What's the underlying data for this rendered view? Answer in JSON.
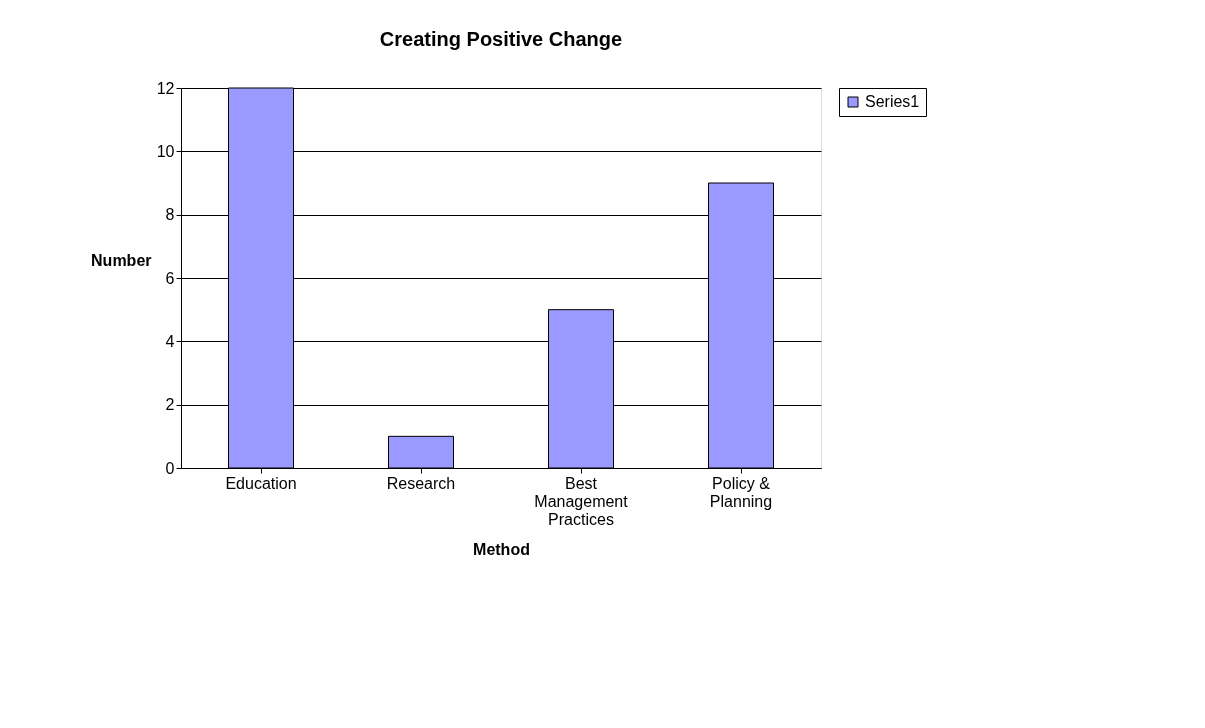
{
  "chart_data": {
    "type": "bar",
    "title": "Creating Positive Change",
    "xlabel": "Method",
    "ylabel": "Number",
    "categories": [
      "Education",
      "Research",
      "Best Management Practices",
      "Policy & Planning"
    ],
    "series": [
      {
        "name": "Series1",
        "color": "#9999ff",
        "values": [
          12,
          1,
          5,
          9
        ]
      }
    ],
    "ylim": [
      0,
      12
    ],
    "yticks": [
      0,
      2,
      4,
      6,
      8,
      10,
      12
    ],
    "grid": "y",
    "legend": "right"
  }
}
